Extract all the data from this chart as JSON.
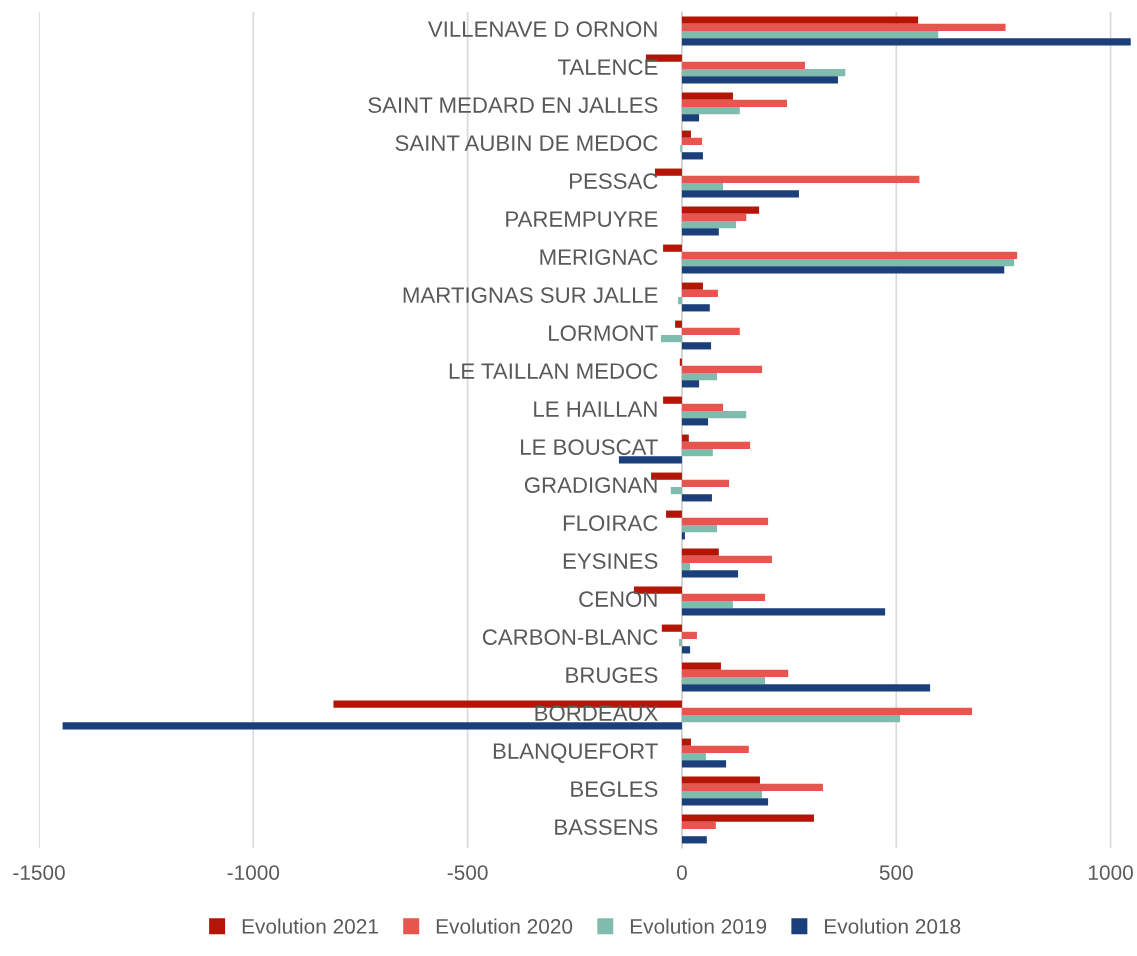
{
  "chart_data": {
    "type": "bar",
    "orientation": "horizontal",
    "categories": [
      "VILLENAVE D ORNON",
      "TALENCE",
      "SAINT MEDARD EN JALLES",
      "SAINT AUBIN DE MEDOC",
      "PESSAC",
      "PAREMPUYRE",
      "MERIGNAC",
      "MARTIGNAS SUR JALLE",
      "LORMONT",
      "LE TAILLAN MEDOC",
      "LE HAILLAN",
      "LE BOUSCAT",
      "GRADIGNAN",
      "FLOIRAC",
      "EYSINES",
      "CENON",
      "CARBON-BLANC",
      "BRUGES",
      "BORDEAUX",
      "BLANQUEFORT",
      "BEGLES",
      "BASSENS"
    ],
    "series": [
      {
        "name": "Evolution 2021",
        "color": "#b31507",
        "values": [
          551,
          -84,
          119,
          21,
          -63,
          180,
          -44,
          49,
          -16,
          -5,
          -44,
          16,
          -72,
          -37,
          86,
          -112,
          -47,
          91,
          -813,
          21,
          182,
          308
        ]
      },
      {
        "name": "Evolution 2020",
        "color": "#e8554e",
        "values": [
          755,
          287,
          245,
          47,
          554,
          150,
          782,
          84,
          135,
          187,
          96,
          159,
          110,
          201,
          210,
          194,
          35,
          248,
          677,
          156,
          329,
          79
        ]
      },
      {
        "name": "Evolution 2019",
        "color": "#80bcad",
        "values": [
          598,
          381,
          135,
          -4,
          96,
          126,
          775,
          -9,
          -49,
          82,
          150,
          72,
          -26,
          82,
          19,
          119,
          -7,
          194,
          509,
          56,
          187,
          null
        ]
      },
      {
        "name": "Evolution 2018",
        "color": "#1a3f7a",
        "values": [
          1047,
          364,
          40,
          49,
          273,
          86,
          752,
          65,
          68,
          40,
          61,
          -147,
          70,
          7,
          131,
          474,
          19,
          579,
          -1445,
          103,
          201,
          58
        ]
      }
    ],
    "xlim": [
      -1500,
      1050
    ],
    "xticks": [
      -1500,
      -1000,
      -500,
      0,
      500,
      1000
    ],
    "grid": "x",
    "legend": "bottom"
  }
}
